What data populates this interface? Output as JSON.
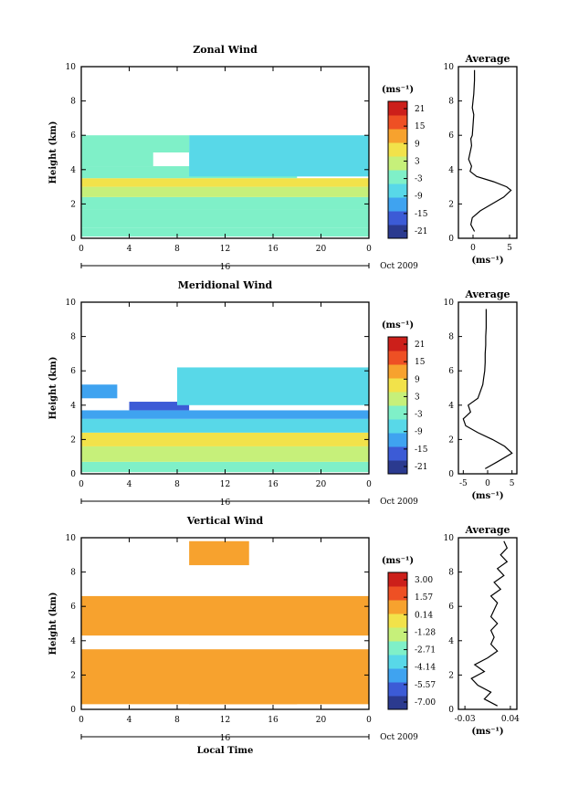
{
  "chart_data": [
    {
      "type": "heatmap",
      "title": "Zonal Wind",
      "ylabel": "Height (km)",
      "xlabel": "",
      "date_label": "Oct 2009",
      "day_label": "16",
      "x_ticks": [
        "0",
        "4",
        "8",
        "12",
        "16",
        "20",
        "0"
      ],
      "y_ticks": [
        "0",
        "2",
        "4",
        "6",
        "8",
        "10"
      ],
      "xlim": [
        0,
        24
      ],
      "ylim": [
        0,
        10
      ],
      "colorbar_unit": "(ms⁻¹)",
      "colorbar_ticks": [
        "21",
        "15",
        "9",
        "3",
        "-3",
        "-9",
        "-15",
        "-21"
      ],
      "colorbar_range": [
        -24,
        24
      ],
      "bands": [
        {
          "y0": 0.1,
          "y1": 0.6,
          "x0": 0,
          "x1": 24,
          "value": -2
        },
        {
          "y0": 0.6,
          "y1": 1.7,
          "x0": 0,
          "x1": 24,
          "value": -4
        },
        {
          "y0": 1.7,
          "y1": 2.4,
          "x0": 0,
          "x1": 24,
          "value": -2
        },
        {
          "y0": 2.4,
          "y1": 3.0,
          "x0": 0,
          "x1": 24,
          "value": 4
        },
        {
          "y0": 3.0,
          "y1": 3.5,
          "x0": 0,
          "x1": 24,
          "value": 6
        },
        {
          "y0": 3.5,
          "y1": 4.2,
          "x0": 0,
          "x1": 18,
          "value": -1
        },
        {
          "y0": 4.2,
          "y1": 5.0,
          "x0": 0,
          "x1": 6,
          "value": -3
        },
        {
          "y0": 3.6,
          "y1": 6.0,
          "x0": 9,
          "x1": 24,
          "value": -6
        },
        {
          "y0": 5.0,
          "y1": 6.0,
          "x0": 0,
          "x1": 9,
          "value": -4
        }
      ],
      "average_profile": {
        "title": "Average",
        "xlabel": "(ms⁻¹)",
        "x_ticks": [
          "0",
          "5"
        ],
        "y_ticks": [
          "0",
          "2",
          "4",
          "6",
          "8",
          "10"
        ],
        "xlim": [
          -2,
          6
        ],
        "ylim": [
          0,
          10
        ],
        "points": [
          [
            0.2,
            0.4
          ],
          [
            -0.3,
            0.8
          ],
          [
            -0.1,
            1.2
          ],
          [
            1.0,
            1.6
          ],
          [
            2.6,
            2.0
          ],
          [
            4.2,
            2.4
          ],
          [
            5.2,
            2.8
          ],
          [
            4.6,
            3.0
          ],
          [
            2.8,
            3.3
          ],
          [
            0.5,
            3.6
          ],
          [
            -0.4,
            3.9
          ],
          [
            -0.2,
            4.2
          ],
          [
            -0.6,
            4.6
          ],
          [
            -0.4,
            5.0
          ],
          [
            -0.2,
            5.4
          ],
          [
            -0.3,
            5.8
          ],
          [
            -0.1,
            6.0
          ],
          [
            0.0,
            6.6
          ],
          [
            0.1,
            7.2
          ],
          [
            -0.1,
            7.6
          ],
          [
            0.0,
            8.0
          ],
          [
            0.1,
            8.4
          ],
          [
            0.2,
            9.2
          ],
          [
            0.2,
            9.8
          ]
        ]
      }
    },
    {
      "type": "heatmap",
      "title": "Meridional Wind",
      "ylabel": "Height (km)",
      "xlabel": "",
      "date_label": "Oct 2009",
      "day_label": "16",
      "x_ticks": [
        "0",
        "4",
        "8",
        "12",
        "16",
        "20",
        "0"
      ],
      "y_ticks": [
        "0",
        "2",
        "4",
        "6",
        "8",
        "10"
      ],
      "xlim": [
        0,
        24
      ],
      "ylim": [
        0,
        10
      ],
      "colorbar_unit": "(ms⁻¹)",
      "colorbar_ticks": [
        "21",
        "15",
        "9",
        "3",
        "-3",
        "-9",
        "-15",
        "-21"
      ],
      "colorbar_range": [
        -24,
        24
      ],
      "bands": [
        {
          "y0": 0.1,
          "y1": 0.7,
          "x0": 0,
          "x1": 24,
          "value": -2
        },
        {
          "y0": 0.7,
          "y1": 1.6,
          "x0": 0,
          "x1": 24,
          "value": 4
        },
        {
          "y0": 1.6,
          "y1": 2.4,
          "x0": 0,
          "x1": 24,
          "value": 5
        },
        {
          "y0": 2.4,
          "y1": 3.2,
          "x0": 0,
          "x1": 24,
          "value": -7
        },
        {
          "y0": 3.2,
          "y1": 3.7,
          "x0": 0,
          "x1": 24,
          "value": -10
        },
        {
          "y0": 3.7,
          "y1": 4.2,
          "x0": 4,
          "x1": 9,
          "value": -16
        },
        {
          "y0": 4.4,
          "y1": 5.2,
          "x0": 0,
          "x1": 3,
          "value": -14
        },
        {
          "y0": 4.0,
          "y1": 6.2,
          "x0": 8,
          "x1": 24,
          "value": -6
        }
      ],
      "average_profile": {
        "title": "Average",
        "xlabel": "(ms⁻¹)",
        "x_ticks": [
          "-5",
          "0",
          "5"
        ],
        "y_ticks": [
          "0",
          "2",
          "4",
          "6",
          "8",
          "10"
        ],
        "xlim": [
          -6,
          6
        ],
        "ylim": [
          0,
          10
        ],
        "points": [
          [
            -0.5,
            0.3
          ],
          [
            2.0,
            0.7
          ],
          [
            5.0,
            1.2
          ],
          [
            3.5,
            1.6
          ],
          [
            1.0,
            2.0
          ],
          [
            -2.0,
            2.4
          ],
          [
            -4.5,
            2.8
          ],
          [
            -5.0,
            3.2
          ],
          [
            -3.5,
            3.6
          ],
          [
            -4.0,
            4.0
          ],
          [
            -2.0,
            4.4
          ],
          [
            -1.5,
            4.8
          ],
          [
            -1.0,
            5.2
          ],
          [
            -0.8,
            5.6
          ],
          [
            -0.6,
            6.0
          ],
          [
            -0.5,
            6.5
          ],
          [
            -0.5,
            7.0
          ],
          [
            -0.4,
            7.5
          ],
          [
            -0.4,
            8.0
          ],
          [
            -0.3,
            8.5
          ],
          [
            -0.3,
            9.0
          ],
          [
            -0.3,
            9.6
          ]
        ]
      }
    },
    {
      "type": "heatmap",
      "title": "Vertical Wind",
      "ylabel": "Height (km)",
      "xlabel": "Local Time",
      "date_label": "Oct 2009",
      "day_label": "16",
      "x_ticks": [
        "0",
        "4",
        "8",
        "12",
        "16",
        "20",
        "0"
      ],
      "y_ticks": [
        "0",
        "2",
        "4",
        "6",
        "8",
        "10"
      ],
      "xlim": [
        0,
        24
      ],
      "ylim": [
        0,
        10
      ],
      "colorbar_unit": "(ms⁻¹)",
      "colorbar_ticks": [
        "3.00",
        "1.57",
        "0.14",
        "-1.28",
        "-2.71",
        "-4.14",
        "-5.57",
        "-7.00"
      ],
      "colorbar_range": [
        -7.7,
        3.7
      ],
      "bands": [
        {
          "y0": 0.3,
          "y1": 3.5,
          "x0": 0,
          "x1": 24,
          "value": 0.3
        },
        {
          "y0": 4.3,
          "y1": 6.6,
          "x0": 0,
          "x1": 24,
          "value": 0.3
        },
        {
          "y0": 0.3,
          "y1": 2.6,
          "x0": 9,
          "x1": 18,
          "value": 1.0
        },
        {
          "y0": 8.4,
          "y1": 9.8,
          "x0": 9,
          "x1": 14,
          "value": 0.3
        }
      ],
      "average_profile": {
        "title": "Average",
        "xlabel": "(ms⁻¹)",
        "x_ticks": [
          "-0.03",
          "0.04"
        ],
        "y_ticks": [
          "0",
          "2",
          "4",
          "6",
          "8",
          "10"
        ],
        "xlim": [
          -0.04,
          0.05
        ],
        "ylim": [
          0,
          10
        ],
        "points": [
          [
            0.02,
            0.2
          ],
          [
            0.0,
            0.6
          ],
          [
            0.01,
            1.0
          ],
          [
            -0.01,
            1.4
          ],
          [
            -0.02,
            1.8
          ],
          [
            0.0,
            2.2
          ],
          [
            -0.015,
            2.6
          ],
          [
            0.005,
            3.0
          ],
          [
            0.02,
            3.4
          ],
          [
            0.01,
            3.8
          ],
          [
            0.015,
            4.2
          ],
          [
            0.01,
            4.6
          ],
          [
            0.02,
            5.0
          ],
          [
            0.01,
            5.4
          ],
          [
            0.015,
            5.8
          ],
          [
            0.02,
            6.2
          ],
          [
            0.01,
            6.6
          ],
          [
            0.025,
            7.0
          ],
          [
            0.015,
            7.4
          ],
          [
            0.03,
            7.8
          ],
          [
            0.02,
            8.2
          ],
          [
            0.035,
            8.6
          ],
          [
            0.025,
            9.0
          ],
          [
            0.035,
            9.4
          ],
          [
            0.03,
            9.8
          ]
        ]
      }
    }
  ]
}
